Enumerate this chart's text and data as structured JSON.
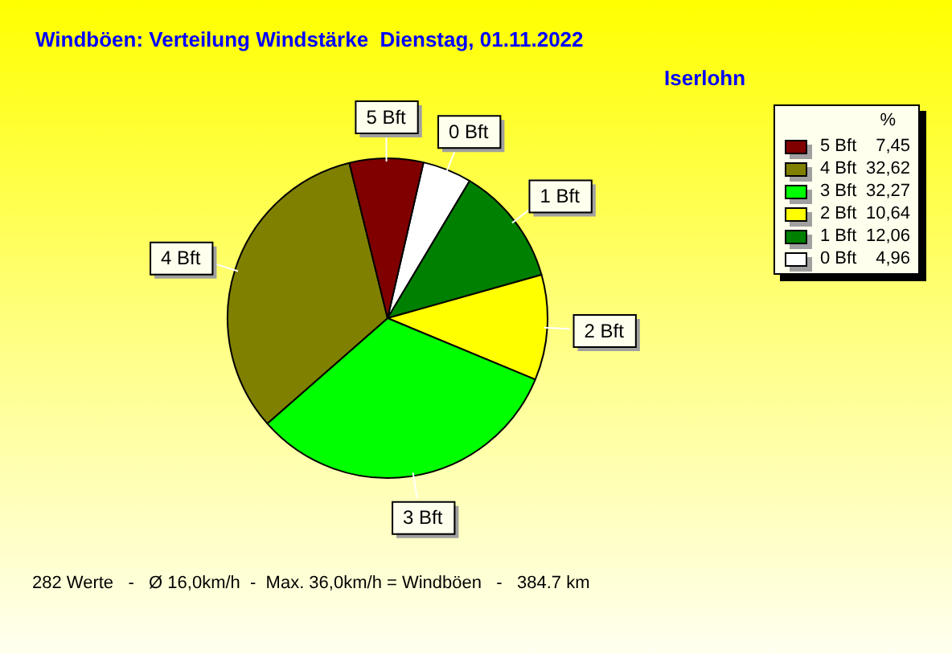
{
  "chart_data": {
    "type": "pie",
    "title": "Windböen: Verteilung Windstärke  Dienstag, 01.11.2022",
    "subtitle": "Iserlohn",
    "legend_title": "%",
    "categories": [
      "5 Bft",
      "4 Bft",
      "3 Bft",
      "2 Bft",
      "1 Bft",
      "0 Bft"
    ],
    "values": [
      7.45,
      32.62,
      32.27,
      10.64,
      12.06,
      4.96
    ],
    "value_labels": [
      "7,45",
      "32,62",
      "32,27",
      "10,64",
      "12,06",
      "4,96"
    ],
    "colors": [
      "#800000",
      "#808000",
      "#00ff00",
      "#ffff00",
      "#008000",
      "#ffffff"
    ],
    "legend": "top right",
    "annotations": [
      "282 Werte   -   Ø 16,0km/h  -  Max. 36,0km/h = Windböen   -   384.7 km"
    ]
  }
}
